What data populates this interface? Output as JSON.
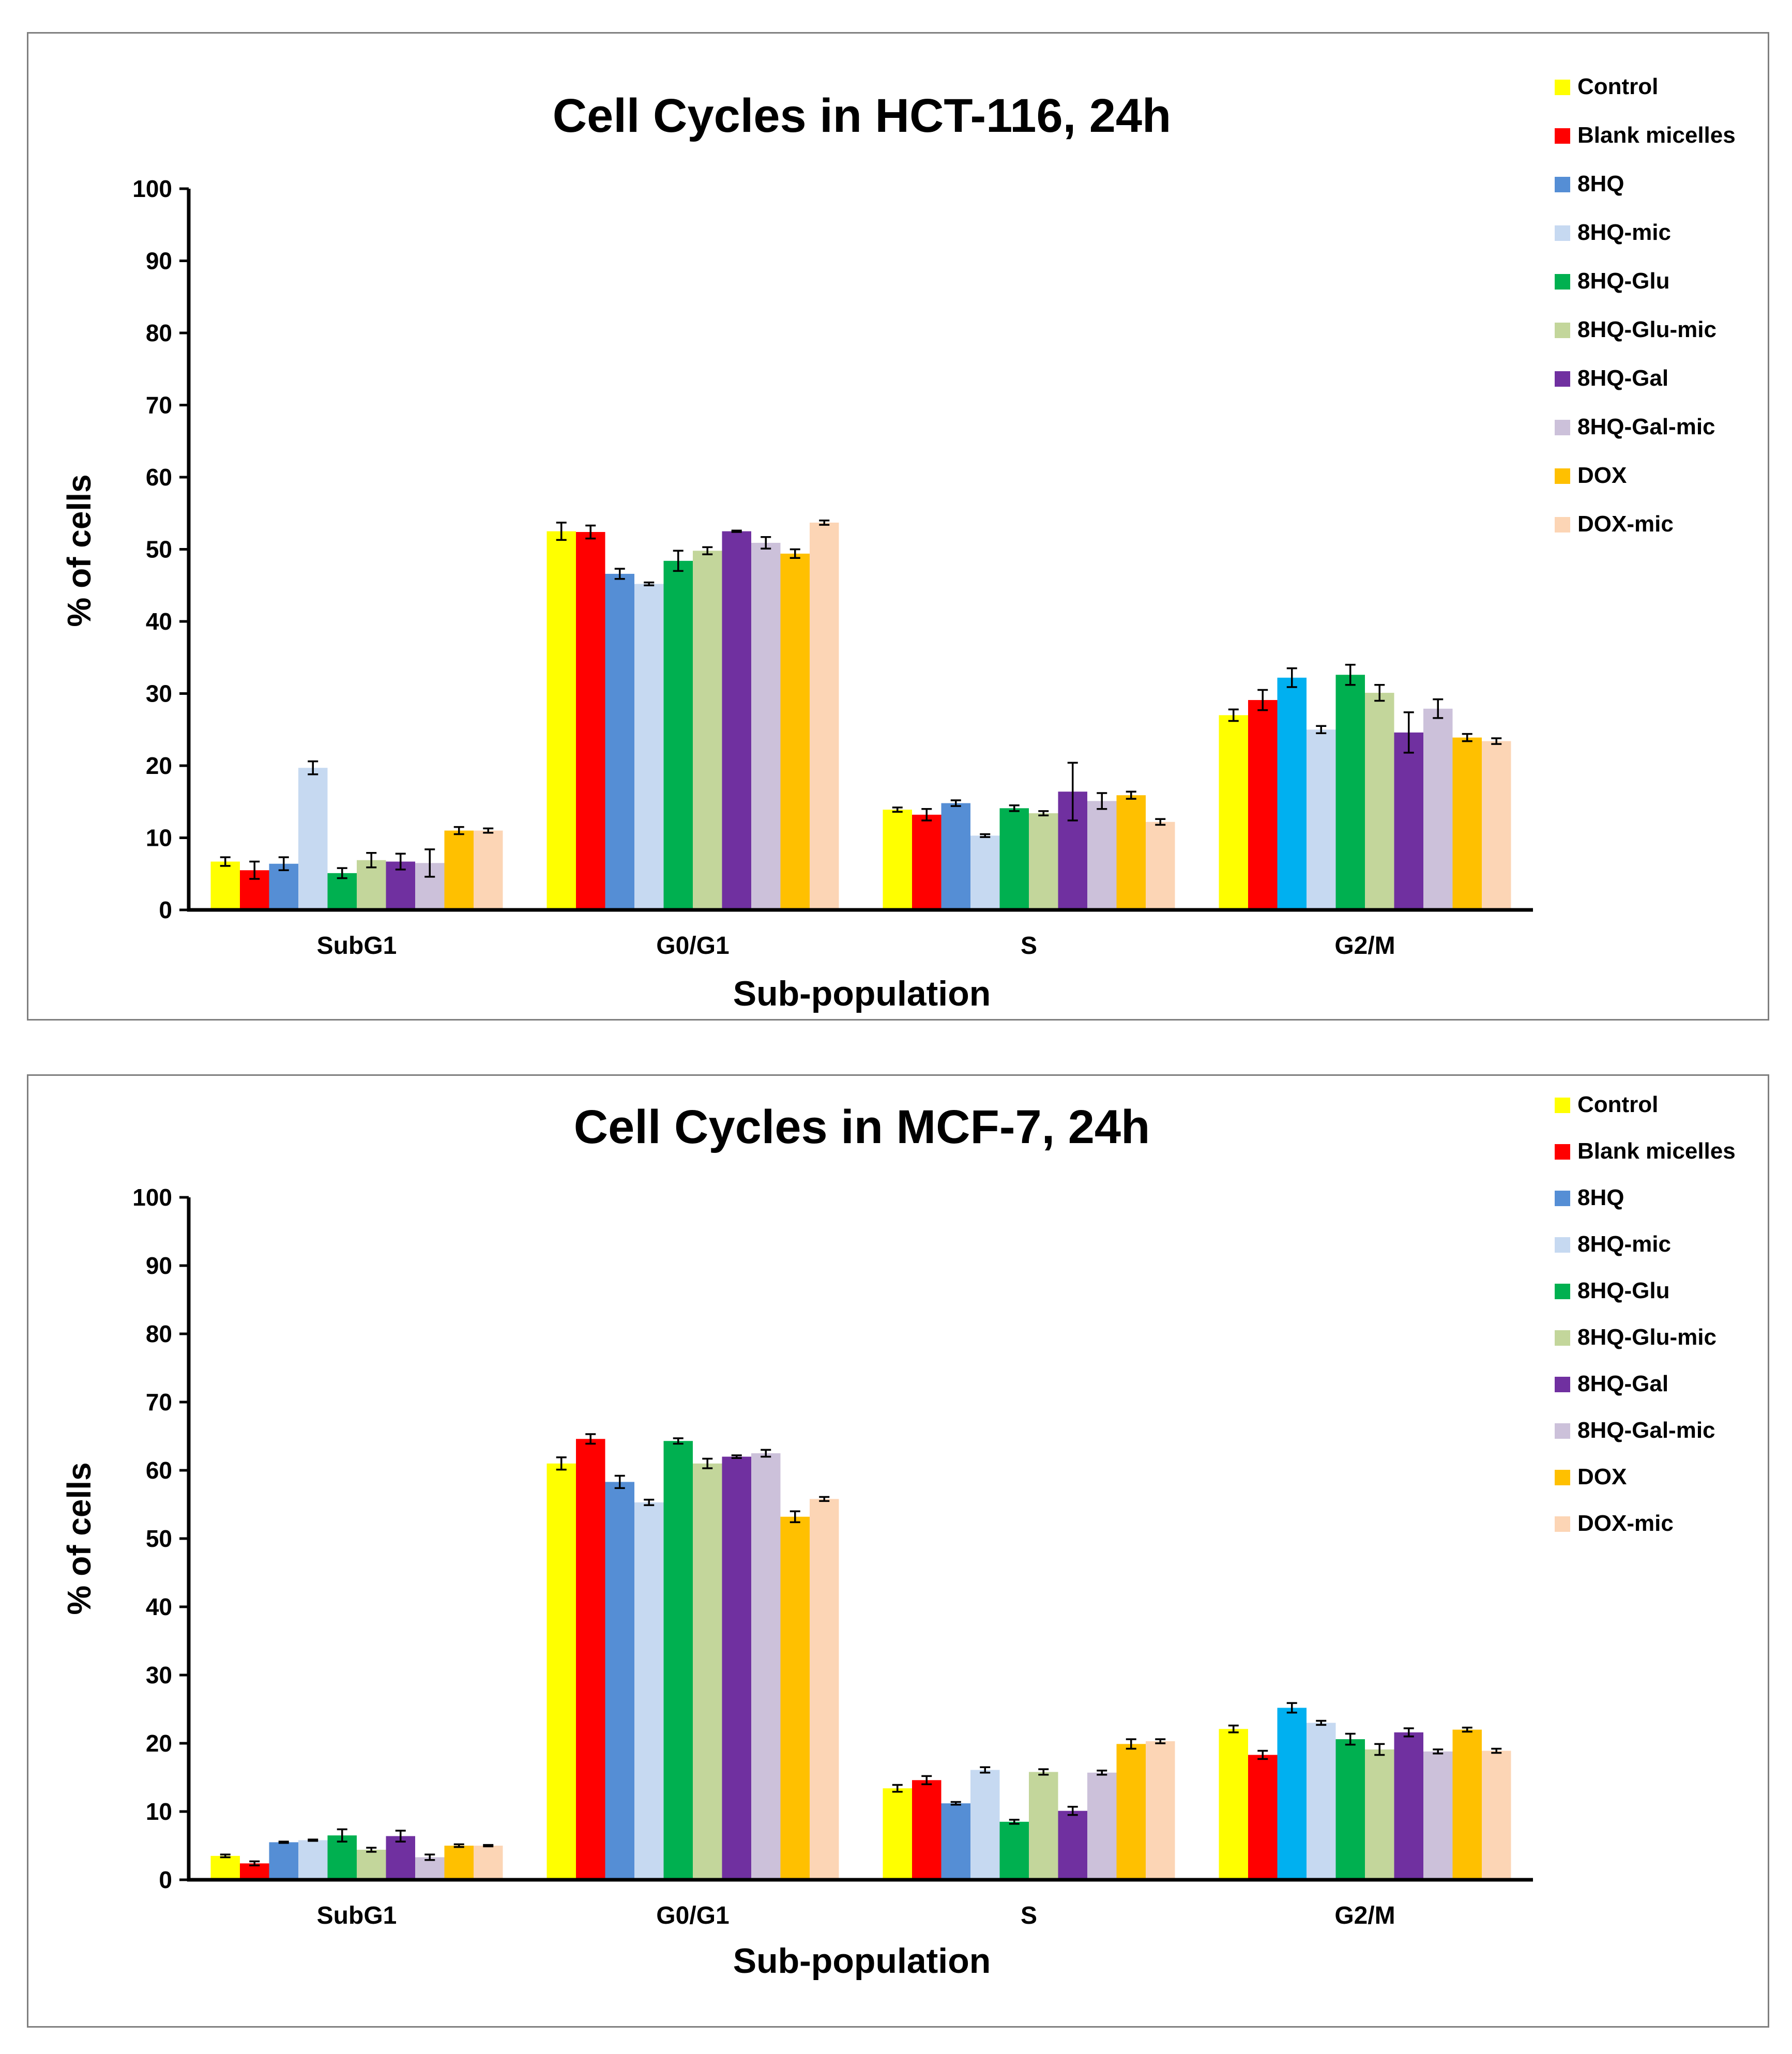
{
  "legend": [
    {
      "name": "Control",
      "color": "#FFFF00"
    },
    {
      "name": "Blank micelles",
      "color": "#FF0000"
    },
    {
      "name": "8HQ",
      "color": "#558ED5"
    },
    {
      "name": "8HQ-mic",
      "color": "#C6D9F1"
    },
    {
      "name": "8HQ-Glu",
      "color": "#00B050"
    },
    {
      "name": "8HQ-Glu-mic",
      "color": "#C3D69B"
    },
    {
      "name": "8HQ-Gal",
      "color": "#7030A0"
    },
    {
      "name": "8HQ-Gal-mic",
      "color": "#CCC1DA"
    },
    {
      "name": "DOX",
      "color": "#FFC000"
    },
    {
      "name": "DOX-mic",
      "color": "#FCD5B5"
    }
  ],
  "g2m_8hq_color": "#00B0F0",
  "chart_data": [
    {
      "type": "bar",
      "title": "Cell Cycles in HCT-116, 24h",
      "xlabel": "Sub-population",
      "ylabel": "% of cells",
      "ylim": [
        0,
        100
      ],
      "yticks": [
        0,
        10,
        20,
        30,
        40,
        50,
        60,
        70,
        80,
        90,
        100
      ],
      "categories": [
        "SubG1",
        "G0/G1",
        "S",
        "G2/M"
      ],
      "legend_position": "right",
      "series": [
        {
          "name": "Control",
          "values": [
            6.7,
            52.5,
            13.9,
            27.0
          ],
          "errors": [
            0.6,
            1.2,
            0.3,
            0.8
          ]
        },
        {
          "name": "Blank micelles",
          "values": [
            5.5,
            52.4,
            13.2,
            29.1
          ],
          "errors": [
            1.2,
            0.9,
            0.8,
            1.4
          ]
        },
        {
          "name": "8HQ",
          "values": [
            6.4,
            46.6,
            14.8,
            32.2
          ],
          "errors": [
            0.9,
            0.7,
            0.4,
            1.3
          ]
        },
        {
          "name": "8HQ-mic",
          "values": [
            19.7,
            45.2,
            10.3,
            25.0
          ],
          "errors": [
            0.9,
            0.2,
            0.2,
            0.5
          ]
        },
        {
          "name": "8HQ-Glu",
          "values": [
            5.1,
            48.4,
            14.1,
            32.6
          ],
          "errors": [
            0.7,
            1.4,
            0.4,
            1.4
          ]
        },
        {
          "name": "8HQ-Glu-mic",
          "values": [
            6.9,
            49.8,
            13.4,
            30.1
          ],
          "errors": [
            1.0,
            0.5,
            0.3,
            1.1
          ]
        },
        {
          "name": "8HQ-Gal",
          "values": [
            6.7,
            52.5,
            16.4,
            24.6
          ],
          "errors": [
            1.1,
            0.1,
            4.0,
            2.8
          ]
        },
        {
          "name": "8HQ-Gal-mic",
          "values": [
            6.5,
            50.9,
            15.1,
            27.9
          ],
          "errors": [
            1.9,
            0.8,
            1.1,
            1.3
          ]
        },
        {
          "name": "DOX",
          "values": [
            11.0,
            49.4,
            15.9,
            23.9
          ],
          "errors": [
            0.5,
            0.6,
            0.5,
            0.5
          ]
        },
        {
          "name": "DOX-mic",
          "values": [
            11.0,
            53.7,
            12.2,
            23.4
          ],
          "errors": [
            0.3,
            0.3,
            0.4,
            0.4
          ]
        }
      ]
    },
    {
      "type": "bar",
      "title": "Cell Cycles in MCF-7, 24h",
      "xlabel": "Sub-population",
      "ylabel": "% of cells",
      "ylim": [
        0,
        100
      ],
      "yticks": [
        0,
        10,
        20,
        30,
        40,
        50,
        60,
        70,
        80,
        90,
        100
      ],
      "categories": [
        "SubG1",
        "G0/G1",
        "S",
        "G2/M"
      ],
      "legend_position": "right",
      "series": [
        {
          "name": "Control",
          "values": [
            3.5,
            61.0,
            13.4,
            22.1
          ],
          "errors": [
            0.2,
            0.9,
            0.5,
            0.5
          ]
        },
        {
          "name": "Blank micelles",
          "values": [
            2.4,
            64.6,
            14.6,
            18.3
          ],
          "errors": [
            0.3,
            0.7,
            0.6,
            0.6
          ]
        },
        {
          "name": "8HQ",
          "values": [
            5.5,
            58.3,
            11.2,
            25.2
          ],
          "errors": [
            0.1,
            0.9,
            0.2,
            0.7
          ]
        },
        {
          "name": "8HQ-mic",
          "values": [
            5.8,
            55.3,
            16.1,
            23.0
          ],
          "errors": [
            0.1,
            0.4,
            0.4,
            0.3
          ]
        },
        {
          "name": "8HQ-Glu",
          "values": [
            6.5,
            64.3,
            8.5,
            20.6
          ],
          "errors": [
            0.9,
            0.4,
            0.3,
            0.8
          ]
        },
        {
          "name": "8HQ-Glu-mic",
          "values": [
            4.4,
            61.0,
            15.8,
            19.1
          ],
          "errors": [
            0.3,
            0.7,
            0.4,
            0.8
          ]
        },
        {
          "name": "8HQ-Gal",
          "values": [
            6.4,
            62.0,
            10.1,
            21.6
          ],
          "errors": [
            0.8,
            0.2,
            0.6,
            0.6
          ]
        },
        {
          "name": "8HQ-Gal-mic",
          "values": [
            3.3,
            62.5,
            15.7,
            18.8
          ],
          "errors": [
            0.4,
            0.5,
            0.3,
            0.3
          ]
        },
        {
          "name": "DOX",
          "values": [
            5.0,
            53.2,
            19.9,
            22.0
          ],
          "errors": [
            0.2,
            0.8,
            0.7,
            0.3
          ]
        },
        {
          "name": "DOX-mic",
          "values": [
            5.0,
            55.8,
            20.3,
            18.9
          ],
          "errors": [
            0.1,
            0.3,
            0.3,
            0.3
          ]
        }
      ]
    }
  ]
}
